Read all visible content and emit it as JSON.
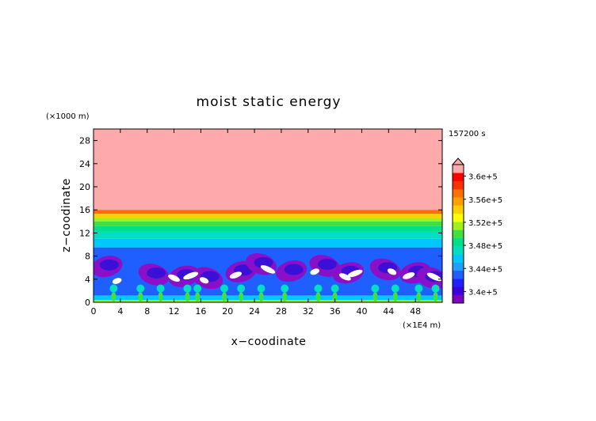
{
  "chart_data": {
    "type": "heatmap",
    "title": "moist static energy",
    "xlabel": "x−coodinate",
    "ylabel": "z−coodinate",
    "x_unit": "(×1E4 m)",
    "y_unit": "(×1000 m)",
    "time_label": "157200 s",
    "xlim": [
      0,
      52
    ],
    "ylim": [
      0,
      30
    ],
    "x_ticks": [
      0,
      4,
      8,
      12,
      16,
      20,
      24,
      28,
      32,
      36,
      40,
      44,
      48
    ],
    "y_ticks": [
      0,
      4,
      8,
      12,
      16,
      20,
      24,
      28
    ],
    "colorbar": {
      "range": [
        338000,
        362000
      ],
      "labels": [
        "3.4e+5",
        "3.44e+5",
        "3.48e+5",
        "3.52e+5",
        "3.56e+5",
        "3.6e+5"
      ],
      "label_values": [
        340000,
        344000,
        348000,
        352000,
        356000,
        360000
      ],
      "colors": [
        "#7f00bf",
        "#3f00e0",
        "#2020ff",
        "#1f5fff",
        "#1fa0ff",
        "#00c8ff",
        "#00e0c0",
        "#00e08a",
        "#40e040",
        "#a0f020",
        "#ffff00",
        "#ffd000",
        "#ffa000",
        "#ff7000",
        "#ff3000",
        "#ff0000",
        "#ffaaaa"
      ],
      "extend": "max"
    },
    "layers": [
      {
        "z_range": [
          16,
          30
        ],
        "level": 362000
      },
      {
        "z_range": [
          15.3,
          16
        ],
        "level": 357500
      },
      {
        "z_range": [
          14.6,
          15.3
        ],
        "level": 355500
      },
      {
        "z_range": [
          14,
          14.6
        ],
        "level": 352500
      },
      {
        "z_range": [
          13.2,
          14
        ],
        "level": 350500
      },
      {
        "z_range": [
          12.2,
          13.2
        ],
        "level": 348500
      },
      {
        "z_range": [
          11,
          12.2
        ],
        "level": 347000
      },
      {
        "z_range": [
          9.5,
          11
        ],
        "level": 345500
      },
      {
        "z_range": [
          0,
          9.5
        ],
        "level": 343500
      }
    ],
    "low_blobs": [
      {
        "x": 2,
        "z": 6.2
      },
      {
        "x": 9,
        "z": 4.8
      },
      {
        "x": 13.5,
        "z": 4.5
      },
      {
        "x": 17,
        "z": 4.2
      },
      {
        "x": 22,
        "z": 5.3
      },
      {
        "x": 25,
        "z": 6.6
      },
      {
        "x": 29.5,
        "z": 5.4
      },
      {
        "x": 34.5,
        "z": 6.3
      },
      {
        "x": 38,
        "z": 5.1
      },
      {
        "x": 43.5,
        "z": 5.7
      },
      {
        "x": 48,
        "z": 5.1
      },
      {
        "x": 50.5,
        "z": 4.2
      }
    ],
    "white_blobs": [
      {
        "x": 3.5,
        "z": 3.7
      },
      {
        "x": 12,
        "z": 4.2
      },
      {
        "x": 14.5,
        "z": 4.6
      },
      {
        "x": 16.5,
        "z": 3.8
      },
      {
        "x": 21.2,
        "z": 4.7
      },
      {
        "x": 26,
        "z": 5.7
      },
      {
        "x": 33,
        "z": 5.3
      },
      {
        "x": 37.5,
        "z": 4.4
      },
      {
        "x": 39,
        "z": 5.0
      },
      {
        "x": 44.5,
        "z": 5.3
      },
      {
        "x": 47,
        "z": 4.6
      },
      {
        "x": 50.8,
        "z": 4.4
      }
    ],
    "surface_plumes": [
      3,
      7,
      10,
      14,
      15.5,
      19.5,
      22,
      25,
      28.5,
      33.5,
      36,
      42,
      45,
      48.5,
      51
    ]
  }
}
